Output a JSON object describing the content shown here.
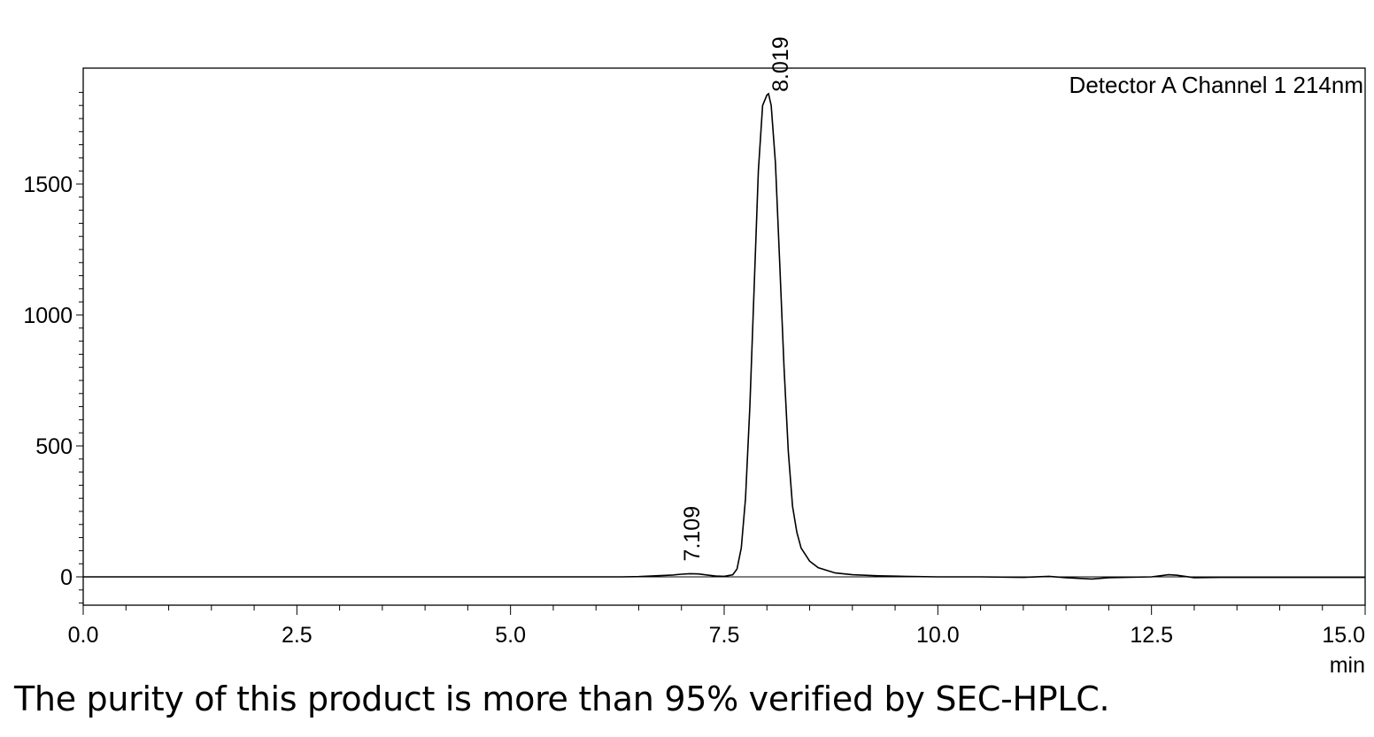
{
  "caption": "The purity of this product is more than 95% verified by SEC-HPLC.",
  "chart_data": {
    "type": "line",
    "title": "",
    "channel_label": "Detector A Channel 1 214nm",
    "xlabel": "min",
    "ylabel": "",
    "xlim": [
      0,
      15
    ],
    "ylim": [
      -110,
      1900
    ],
    "x_ticks": [
      {
        "value": 0,
        "label": "0.0"
      },
      {
        "value": 2.5,
        "label": "2.5"
      },
      {
        "value": 5,
        "label": "5.0"
      },
      {
        "value": 7.5,
        "label": "7.5"
      },
      {
        "value": 10,
        "label": "10.0"
      },
      {
        "value": 12.5,
        "label": "12.5"
      },
      {
        "value": 15,
        "label": "15.0"
      }
    ],
    "y_ticks": [
      {
        "value": 0,
        "label": "0"
      },
      {
        "value": 500,
        "label": "500"
      },
      {
        "value": 1000,
        "label": "1000"
      },
      {
        "value": 1500,
        "label": "1500"
      }
    ],
    "baseline": 0,
    "grid": false,
    "peaks": [
      {
        "retention_time": 7.109,
        "label": "7.109",
        "height": 12
      },
      {
        "retention_time": 8.019,
        "label": "8.019",
        "height": 1845
      }
    ],
    "series": [
      {
        "x": [
          0,
          6.3,
          6.5,
          6.7,
          6.9,
          7.0,
          7.1,
          7.2,
          7.3,
          7.4,
          7.5,
          7.6,
          7.65,
          7.7,
          7.75,
          7.8,
          7.85,
          7.9,
          7.95,
          8.0,
          8.019,
          8.05,
          8.1,
          8.15,
          8.2,
          8.25,
          8.3,
          8.35,
          8.4,
          8.5,
          8.6,
          8.8,
          9.0,
          9.3,
          9.6,
          10.0,
          10.5,
          11.0,
          11.3,
          11.5,
          11.8,
          12.0,
          12.5,
          12.7,
          12.8,
          13.0,
          13.3,
          15.0
        ],
        "y": [
          0,
          0,
          1,
          4,
          7,
          10,
          12,
          11,
          7,
          3,
          2,
          8,
          30,
          110,
          300,
          650,
          1100,
          1550,
          1800,
          1840,
          1845,
          1800,
          1580,
          1200,
          800,
          480,
          270,
          170,
          110,
          60,
          35,
          15,
          8,
          4,
          2,
          0,
          0,
          -2,
          2,
          -3,
          -8,
          -3,
          0,
          8,
          6,
          -3,
          -2,
          -2
        ]
      }
    ]
  }
}
